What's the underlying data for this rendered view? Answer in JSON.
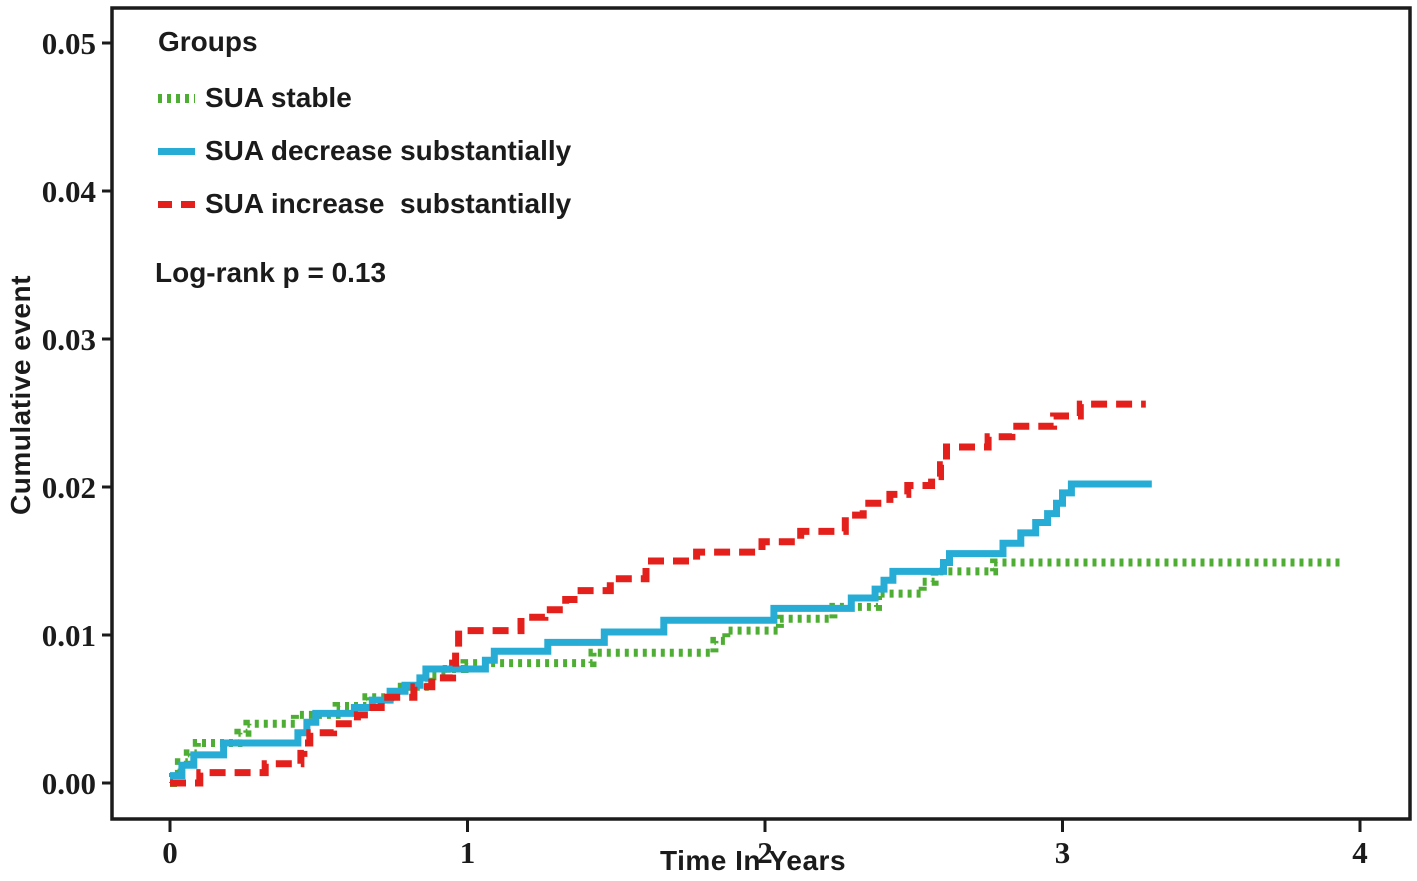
{
  "figure": {
    "legend_title": "Groups",
    "annotation": "Log-rank p = 0.13",
    "x_axis_label": "Time In Years",
    "y_axis_label": "Cumulative event"
  },
  "colors": {
    "axis": "#1b1b1b",
    "sua_stable": "#4EAE33",
    "sua_decrease": "#26ACD5",
    "sua_increase": "#E4201C"
  },
  "chart_data": {
    "type": "line",
    "subtype": "cumulative-incidence-step-curves",
    "title": "",
    "xlabel": "Time In Years",
    "ylabel": "Cumulative event",
    "xlim": [
      0,
      4
    ],
    "ylim": [
      0,
      0.05
    ],
    "x_ticks": [
      "0",
      "1",
      "2",
      "3",
      "4"
    ],
    "y_ticks": [
      "0.00",
      "0.01",
      "0.02",
      "0.03",
      "0.04",
      "0.05"
    ],
    "grid": false,
    "legend_position": "top-left-inside",
    "annotation": "Log-rank p = 0.13",
    "series": [
      {
        "name": "SUA stable",
        "color": "#4EAE33",
        "line_style": "dotted",
        "end_x": 3.94,
        "steps": [
          [
            0.0,
            0.0
          ],
          [
            0.01,
            0.0007
          ],
          [
            0.03,
            0.0014
          ],
          [
            0.06,
            0.002
          ],
          [
            0.09,
            0.0027
          ],
          [
            0.23,
            0.0034
          ],
          [
            0.26,
            0.004
          ],
          [
            0.42,
            0.0046
          ],
          [
            0.56,
            0.0052
          ],
          [
            0.66,
            0.0058
          ],
          [
            0.76,
            0.0065
          ],
          [
            0.87,
            0.0072
          ],
          [
            0.93,
            0.0077
          ],
          [
            0.99,
            0.0081
          ],
          [
            1.42,
            0.0088
          ],
          [
            1.83,
            0.0096
          ],
          [
            1.87,
            0.0103
          ],
          [
            2.05,
            0.0111
          ],
          [
            2.23,
            0.0119
          ],
          [
            2.38,
            0.0128
          ],
          [
            2.53,
            0.0136
          ],
          [
            2.57,
            0.0143
          ],
          [
            2.77,
            0.0149
          ]
        ]
      },
      {
        "name": "SUA decrease substantially",
        "color": "#26ACD5",
        "line_style": "solid",
        "end_x": 3.3,
        "steps": [
          [
            0.0,
            0.0005
          ],
          [
            0.04,
            0.0012
          ],
          [
            0.08,
            0.0019
          ],
          [
            0.18,
            0.0027
          ],
          [
            0.43,
            0.0034
          ],
          [
            0.46,
            0.0041
          ],
          [
            0.49,
            0.0047
          ],
          [
            0.62,
            0.0051
          ],
          [
            0.68,
            0.0056
          ],
          [
            0.74,
            0.0062
          ],
          [
            0.79,
            0.0066
          ],
          [
            0.84,
            0.0071
          ],
          [
            0.86,
            0.0077
          ],
          [
            1.06,
            0.0083
          ],
          [
            1.09,
            0.0089
          ],
          [
            1.27,
            0.0095
          ],
          [
            1.46,
            0.0102
          ],
          [
            1.66,
            0.011
          ],
          [
            2.03,
            0.0118
          ],
          [
            2.29,
            0.0125
          ],
          [
            2.37,
            0.0131
          ],
          [
            2.4,
            0.0137
          ],
          [
            2.43,
            0.0143
          ],
          [
            2.6,
            0.0149
          ],
          [
            2.62,
            0.0155
          ],
          [
            2.8,
            0.0162
          ],
          [
            2.86,
            0.0169
          ],
          [
            2.91,
            0.0176
          ],
          [
            2.95,
            0.0182
          ],
          [
            2.98,
            0.0189
          ],
          [
            3.0,
            0.0196
          ],
          [
            3.03,
            0.0202
          ]
        ]
      },
      {
        "name": "SUA increase  substantially",
        "color": "#E4201C",
        "line_style": "dashed",
        "end_x": 3.28,
        "steps": [
          [
            0.0,
            0.0
          ],
          [
            0.1,
            0.0007
          ],
          [
            0.32,
            0.0013
          ],
          [
            0.44,
            0.002
          ],
          [
            0.45,
            0.0027
          ],
          [
            0.47,
            0.0034
          ],
          [
            0.55,
            0.004
          ],
          [
            0.63,
            0.0046
          ],
          [
            0.67,
            0.0051
          ],
          [
            0.71,
            0.0058
          ],
          [
            0.82,
            0.0065
          ],
          [
            0.88,
            0.0071
          ],
          [
            0.95,
            0.0081
          ],
          [
            0.96,
            0.0092
          ],
          [
            0.97,
            0.0103
          ],
          [
            1.18,
            0.0112
          ],
          [
            1.26,
            0.0117
          ],
          [
            1.33,
            0.0124
          ],
          [
            1.37,
            0.013
          ],
          [
            1.48,
            0.0138
          ],
          [
            1.6,
            0.015
          ],
          [
            1.77,
            0.0156
          ],
          [
            1.99,
            0.0163
          ],
          [
            2.12,
            0.017
          ],
          [
            2.27,
            0.0181
          ],
          [
            2.33,
            0.0189
          ],
          [
            2.42,
            0.0195
          ],
          [
            2.48,
            0.0201
          ],
          [
            2.56,
            0.0207
          ],
          [
            2.59,
            0.0215
          ],
          [
            2.61,
            0.0227
          ],
          [
            2.75,
            0.0234
          ],
          [
            2.83,
            0.0241
          ],
          [
            2.97,
            0.0248
          ],
          [
            3.06,
            0.0256
          ]
        ]
      }
    ]
  }
}
